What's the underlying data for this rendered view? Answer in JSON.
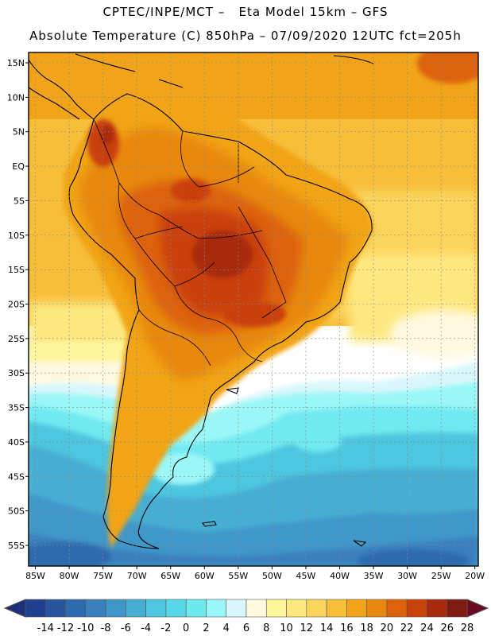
{
  "header": {
    "line1": "CPTEC/INPE/MCT –   Eta Model 15km – GFS",
    "line2": "Absolute Temperature (C) 850hPa – 07/09/2020 12UTC fct=205h"
  },
  "map": {
    "lat_labels": [
      "15N",
      "10N",
      "5N",
      "EQ",
      "5S",
      "10S",
      "15S",
      "20S",
      "25S",
      "30S",
      "35S",
      "40S",
      "45S",
      "50S",
      "55S"
    ],
    "lon_labels": [
      "85W",
      "80W",
      "75W",
      "70W",
      "65W",
      "60W",
      "55W",
      "50W",
      "45W",
      "40W",
      "35W",
      "30W",
      "25W",
      "20W"
    ],
    "lat_values": [
      15,
      10,
      5,
      0,
      -5,
      -10,
      -15,
      -20,
      -25,
      -30,
      -35,
      -40,
      -45,
      -50,
      -55
    ],
    "lon_values": [
      -85,
      -80,
      -75,
      -70,
      -65,
      -60,
      -55,
      -50,
      -45,
      -40,
      -35,
      -30,
      -25,
      -20
    ],
    "lat_range": [
      -58,
      16.5
    ],
    "lon_range": [
      -86,
      -19.5
    ],
    "ocean_color": "#f3b21e",
    "coast_color": "#000000"
  },
  "legend": {
    "labels": [
      "-14",
      "-12",
      "-10",
      "-8",
      "-6",
      "-4",
      "-2",
      "0",
      "2",
      "4",
      "6",
      "8",
      "10",
      "12",
      "14",
      "16",
      "18",
      "20",
      "22",
      "24",
      "26",
      "28"
    ],
    "colors": [
      "#1f3f8f",
      "#27549d",
      "#2d6aae",
      "#3a80bd",
      "#3f97c9",
      "#46aed3",
      "#4ec6df",
      "#57d7e7",
      "#6fe9f0",
      "#9bf7f7",
      "#d9f7fb",
      "#fff9e0",
      "#fff59c",
      "#fde87f",
      "#fbd45c",
      "#f7be3a",
      "#f1a419",
      "#e8880f",
      "#dd620b",
      "#c9410b",
      "#a82a0e",
      "#7d1a12"
    ],
    "low_color": "#1c2f78",
    "high_color": "#6a0a20"
  }
}
